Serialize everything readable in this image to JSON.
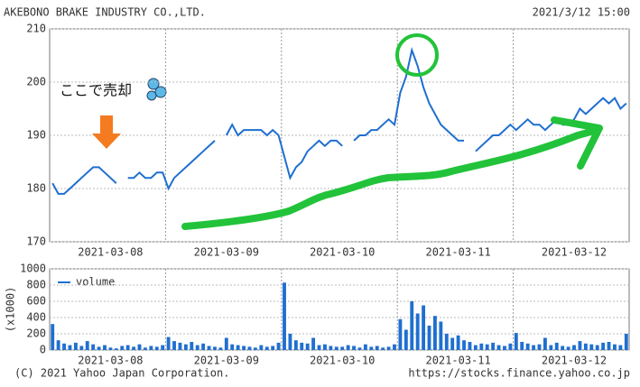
{
  "chart_data": [
    {
      "type": "line",
      "title": "AKEBONO BRAKE INDUSTRY CO.,LTD.",
      "subtitle": "2021/3/12 15:00",
      "annotation": "ここで売却",
      "categories": [
        null,
        null,
        null,
        null,
        null,
        null,
        null,
        null,
        null,
        null,
        "2021-03-08",
        null,
        null,
        null,
        null,
        null,
        null,
        null,
        null,
        null,
        null,
        null,
        null,
        null,
        null,
        null,
        null,
        null,
        null,
        null,
        "2021-03-09",
        null,
        null,
        null,
        null,
        null,
        null,
        null,
        null,
        null,
        null,
        null,
        null,
        null,
        null,
        null,
        null,
        null,
        null,
        null,
        "2021-03-10",
        null,
        null,
        null,
        null,
        null,
        null,
        null,
        null,
        null,
        null,
        null,
        null,
        null,
        null,
        null,
        null,
        null,
        null,
        null,
        "2021-03-11",
        null,
        null,
        null,
        null,
        null,
        null,
        null,
        null,
        null,
        null,
        null,
        null,
        null,
        null,
        null,
        null,
        null,
        null,
        null,
        "2021-03-12",
        null,
        null,
        null,
        null,
        null,
        null,
        null,
        null,
        null
      ],
      "values": [
        181,
        179,
        179,
        180,
        181,
        182,
        183,
        184,
        184,
        183,
        182,
        181,
        null,
        182,
        182,
        183,
        182,
        182,
        183,
        183,
        180,
        182,
        183,
        184,
        185,
        186,
        187,
        188,
        189,
        null,
        190,
        192,
        190,
        191,
        191,
        191,
        191,
        190,
        191,
        190,
        186,
        182,
        184,
        185,
        187,
        188,
        189,
        188,
        189,
        189,
        188,
        null,
        189,
        190,
        190,
        191,
        191,
        192,
        193,
        192,
        198,
        201,
        206,
        203,
        199,
        196,
        194,
        192,
        191,
        190,
        189,
        189,
        null,
        187,
        188,
        189,
        190,
        190,
        191,
        192,
        191,
        192,
        193,
        192,
        192,
        191,
        192,
        193,
        192,
        192,
        193,
        195,
        194,
        195,
        196,
        197,
        196,
        197,
        195,
        196
      ],
      "color": "#1f6fd0",
      "ylim": [
        170,
        210
      ],
      "yticks": [
        170,
        180,
        190,
        200,
        210
      ],
      "grid": true
    },
    {
      "type": "bar",
      "ylabel": "(x1000)",
      "categories": [
        null,
        null,
        null,
        null,
        null,
        null,
        null,
        null,
        null,
        null,
        "2021-03-08",
        null,
        null,
        null,
        null,
        null,
        null,
        null,
        null,
        null,
        null,
        null,
        null,
        null,
        null,
        null,
        null,
        null,
        null,
        null,
        "2021-03-09",
        null,
        null,
        null,
        null,
        null,
        null,
        null,
        null,
        null,
        null,
        null,
        null,
        null,
        null,
        null,
        null,
        null,
        null,
        null,
        "2021-03-10",
        null,
        null,
        null,
        null,
        null,
        null,
        null,
        null,
        null,
        null,
        null,
        null,
        null,
        null,
        null,
        null,
        null,
        null,
        null,
        "2021-03-11",
        null,
        null,
        null,
        null,
        null,
        null,
        null,
        null,
        null,
        null,
        null,
        null,
        null,
        null,
        null,
        null,
        null,
        null,
        null,
        "2021-03-12",
        null,
        null,
        null,
        null,
        null,
        null,
        null,
        null,
        null
      ],
      "series": [
        {
          "name": "volume",
          "color": "#1f6fd0",
          "values": [
            320,
            120,
            80,
            60,
            90,
            50,
            110,
            70,
            40,
            60,
            30,
            20,
            50,
            60,
            40,
            70,
            30,
            50,
            40,
            60,
            160,
            110,
            90,
            70,
            100,
            60,
            80,
            50,
            40,
            30,
            150,
            70,
            60,
            50,
            40,
            30,
            60,
            40,
            50,
            90,
            830,
            200,
            120,
            90,
            80,
            150,
            60,
            70,
            50,
            40,
            40,
            60,
            50,
            30,
            70,
            40,
            50,
            30,
            40,
            70,
            380,
            250,
            600,
            450,
            550,
            300,
            420,
            350,
            200,
            150,
            180,
            120,
            100,
            60,
            80,
            70,
            90,
            60,
            50,
            80,
            210,
            100,
            80,
            60,
            70,
            150,
            60,
            90,
            50,
            40,
            60,
            110,
            80,
            70,
            60,
            90,
            100,
            70,
            60,
            200
          ]
        }
      ],
      "ylim": [
        0,
        1000
      ],
      "yticks": [
        0,
        200,
        400,
        600,
        800,
        1000
      ],
      "grid": true
    }
  ],
  "footer": {
    "copyright": "(C) 2021 Yahoo Japan Corporation.",
    "url": "https://stocks.finance.yahoo.co.jp"
  }
}
